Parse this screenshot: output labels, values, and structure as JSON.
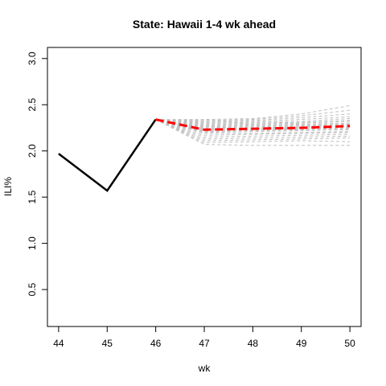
{
  "chart_data": {
    "type": "line",
    "title": "State: Hawaii 1-4 wk ahead",
    "xlabel": "wk",
    "ylabel": "ILI%",
    "xlim": [
      43.77,
      50.23
    ],
    "ylim": [
      0.1,
      3.12
    ],
    "x_ticks": [
      44,
      45,
      46,
      47,
      48,
      49,
      50
    ],
    "y_ticks": [
      0.5,
      1.0,
      1.5,
      2.0,
      2.5,
      3.0
    ],
    "y_tick_labels": [
      "0.5",
      "1.0",
      "1.5",
      "2.0",
      "2.5",
      "3.0"
    ],
    "observed": {
      "x": [
        44,
        45,
        46
      ],
      "values": [
        1.97,
        1.57,
        2.34
      ],
      "color": "#000000"
    },
    "forecast_mean": {
      "x": [
        46,
        47,
        48,
        49,
        50
      ],
      "values": [
        2.34,
        2.23,
        2.24,
        2.25,
        2.27
      ],
      "color": "#ff0000"
    },
    "simulations": {
      "color": "#bebebe",
      "x": [
        46,
        47,
        48,
        49,
        50
      ],
      "series": [
        [
          2.34,
          2.07,
          2.06,
          2.06,
          2.06
        ],
        [
          2.34,
          2.09,
          2.1,
          2.11,
          2.1
        ],
        [
          2.34,
          2.11,
          2.12,
          2.13,
          2.14
        ],
        [
          2.34,
          2.13,
          2.14,
          2.15,
          2.16
        ],
        [
          2.34,
          2.15,
          2.16,
          2.17,
          2.18
        ],
        [
          2.34,
          2.17,
          2.18,
          2.19,
          2.2
        ],
        [
          2.34,
          2.19,
          2.19,
          2.2,
          2.21
        ],
        [
          2.34,
          2.2,
          2.21,
          2.22,
          2.23
        ],
        [
          2.34,
          2.21,
          2.22,
          2.23,
          2.24
        ],
        [
          2.34,
          2.22,
          2.23,
          2.24,
          2.25
        ],
        [
          2.34,
          2.23,
          2.24,
          2.25,
          2.26
        ],
        [
          2.34,
          2.24,
          2.25,
          2.26,
          2.27
        ],
        [
          2.34,
          2.25,
          2.26,
          2.27,
          2.28
        ],
        [
          2.34,
          2.26,
          2.27,
          2.28,
          2.29
        ],
        [
          2.34,
          2.27,
          2.28,
          2.29,
          2.3
        ],
        [
          2.34,
          2.28,
          2.29,
          2.3,
          2.32
        ],
        [
          2.34,
          2.29,
          2.3,
          2.31,
          2.33
        ],
        [
          2.34,
          2.3,
          2.31,
          2.32,
          2.35
        ],
        [
          2.34,
          2.31,
          2.32,
          2.34,
          2.37
        ],
        [
          2.34,
          2.32,
          2.33,
          2.36,
          2.4
        ],
        [
          2.34,
          2.33,
          2.34,
          2.38,
          2.44
        ],
        [
          2.34,
          2.34,
          2.35,
          2.4,
          2.49
        ]
      ]
    }
  }
}
